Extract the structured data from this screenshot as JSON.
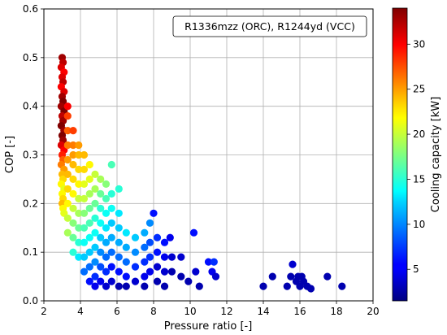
{
  "chart_data": {
    "type": "scatter",
    "title": "",
    "xlabel": "Pressure ratio [-]",
    "ylabel": "COP [-]",
    "xlim": [
      2,
      20
    ],
    "ylim": [
      0.0,
      0.6
    ],
    "xticks": [
      "2",
      "4",
      "6",
      "8",
      "10",
      "12",
      "14",
      "16",
      "18",
      "20"
    ],
    "yticks": [
      "0.0",
      "0.1",
      "0.2",
      "0.3",
      "0.4",
      "0.5",
      "0.6"
    ],
    "grid": true,
    "legend": {
      "text": "R1336mzz (ORC), R1244yd (VCC)",
      "placement": "top-right"
    },
    "colorbar": {
      "label": "Cooling capacity [kW]",
      "colormap": "jet",
      "range": [
        1.5,
        34
      ],
      "ticks": [
        "5",
        "10",
        "15",
        "20",
        "25",
        "30"
      ]
    },
    "series": [
      {
        "points": [
          [
            3.0,
            0.5,
            33
          ],
          [
            3.05,
            0.49,
            32
          ],
          [
            2.95,
            0.48,
            31
          ],
          [
            3.1,
            0.47,
            30
          ],
          [
            3.0,
            0.46,
            31
          ],
          [
            3.05,
            0.45,
            32
          ],
          [
            2.95,
            0.44,
            30
          ],
          [
            3.1,
            0.43,
            31
          ],
          [
            3.0,
            0.42,
            33
          ],
          [
            3.05,
            0.41,
            34
          ],
          [
            2.95,
            0.4,
            33
          ],
          [
            3.1,
            0.39,
            34
          ],
          [
            3.0,
            0.38,
            32
          ],
          [
            3.05,
            0.37,
            33
          ],
          [
            2.95,
            0.36,
            34
          ],
          [
            3.1,
            0.35,
            33
          ],
          [
            3.0,
            0.34,
            34
          ],
          [
            3.05,
            0.33,
            33
          ],
          [
            2.95,
            0.32,
            31
          ],
          [
            3.1,
            0.31,
            30
          ],
          [
            3.0,
            0.3,
            29
          ],
          [
            3.05,
            0.29,
            27
          ],
          [
            2.95,
            0.28,
            26
          ],
          [
            3.1,
            0.27,
            25
          ],
          [
            3.0,
            0.26,
            24
          ],
          [
            3.05,
            0.25,
            23
          ],
          [
            2.95,
            0.24,
            22
          ],
          [
            3.1,
            0.23,
            21
          ],
          [
            3.0,
            0.22,
            22
          ],
          [
            3.05,
            0.21,
            23
          ],
          [
            3.0,
            0.2,
            24
          ],
          [
            3.05,
            0.19,
            22
          ],
          [
            3.1,
            0.18,
            21
          ],
          [
            3.3,
            0.4,
            30
          ],
          [
            3.3,
            0.38,
            28
          ],
          [
            3.3,
            0.35,
            27
          ],
          [
            3.3,
            0.32,
            26
          ],
          [
            3.3,
            0.29,
            25
          ],
          [
            3.3,
            0.26,
            24
          ],
          [
            3.3,
            0.23,
            23
          ],
          [
            3.3,
            0.2,
            22
          ],
          [
            3.3,
            0.17,
            20
          ],
          [
            3.3,
            0.14,
            19
          ],
          [
            3.6,
            0.35,
            28
          ],
          [
            3.6,
            0.32,
            26
          ],
          [
            3.6,
            0.3,
            25
          ],
          [
            3.6,
            0.28,
            24
          ],
          [
            3.6,
            0.25,
            23
          ],
          [
            3.6,
            0.22,
            22
          ],
          [
            3.6,
            0.19,
            20
          ],
          [
            3.6,
            0.16,
            18
          ],
          [
            3.6,
            0.13,
            17
          ],
          [
            3.6,
            0.1,
            15
          ],
          [
            3.9,
            0.32,
            25
          ],
          [
            3.9,
            0.3,
            24
          ],
          [
            3.9,
            0.27,
            23
          ],
          [
            3.9,
            0.24,
            22
          ],
          [
            3.9,
            0.21,
            20
          ],
          [
            3.9,
            0.18,
            19
          ],
          [
            3.9,
            0.15,
            17
          ],
          [
            3.9,
            0.12,
            15
          ],
          [
            3.9,
            0.09,
            13
          ],
          [
            4.2,
            0.3,
            24
          ],
          [
            4.2,
            0.27,
            23
          ],
          [
            4.2,
            0.24,
            21
          ],
          [
            4.2,
            0.21,
            20
          ],
          [
            4.2,
            0.18,
            18
          ],
          [
            4.2,
            0.15,
            16
          ],
          [
            4.2,
            0.12,
            14
          ],
          [
            4.2,
            0.09,
            12
          ],
          [
            4.2,
            0.06,
            9
          ],
          [
            4.5,
            0.28,
            22
          ],
          [
            4.5,
            0.25,
            21
          ],
          [
            4.5,
            0.22,
            19
          ],
          [
            4.5,
            0.19,
            17
          ],
          [
            4.5,
            0.16,
            16
          ],
          [
            4.5,
            0.13,
            14
          ],
          [
            4.5,
            0.1,
            12
          ],
          [
            4.5,
            0.07,
            9
          ],
          [
            4.5,
            0.04,
            6
          ],
          [
            4.8,
            0.26,
            20
          ],
          [
            4.8,
            0.23,
            19
          ],
          [
            4.8,
            0.2,
            17
          ],
          [
            4.8,
            0.17,
            15
          ],
          [
            4.8,
            0.14,
            14
          ],
          [
            4.8,
            0.11,
            12
          ],
          [
            4.8,
            0.08,
            10
          ],
          [
            4.8,
            0.05,
            7
          ],
          [
            4.8,
            0.03,
            5
          ],
          [
            5.1,
            0.25,
            19
          ],
          [
            5.1,
            0.22,
            17
          ],
          [
            5.1,
            0.19,
            15
          ],
          [
            5.1,
            0.16,
            14
          ],
          [
            5.1,
            0.13,
            12
          ],
          [
            5.1,
            0.1,
            10
          ],
          [
            5.1,
            0.07,
            8
          ],
          [
            5.1,
            0.04,
            5
          ],
          [
            5.4,
            0.24,
            18
          ],
          [
            5.4,
            0.21,
            16
          ],
          [
            5.4,
            0.18,
            14
          ],
          [
            5.4,
            0.15,
            13
          ],
          [
            5.4,
            0.12,
            11
          ],
          [
            5.4,
            0.09,
            9
          ],
          [
            5.4,
            0.06,
            7
          ],
          [
            5.4,
            0.03,
            4
          ],
          [
            5.7,
            0.28,
            16
          ],
          [
            5.7,
            0.22,
            15
          ],
          [
            5.7,
            0.19,
            14
          ],
          [
            5.7,
            0.16,
            12
          ],
          [
            5.7,
            0.13,
            11
          ],
          [
            5.7,
            0.1,
            9
          ],
          [
            5.7,
            0.07,
            6
          ],
          [
            5.7,
            0.04,
            4
          ],
          [
            6.1,
            0.23,
            15
          ],
          [
            6.1,
            0.18,
            13
          ],
          [
            6.1,
            0.15,
            12
          ],
          [
            6.1,
            0.12,
            11
          ],
          [
            6.1,
            0.09,
            9
          ],
          [
            6.1,
            0.06,
            6
          ],
          [
            6.1,
            0.03,
            3
          ],
          [
            6.5,
            0.14,
            13
          ],
          [
            6.5,
            0.11,
            11
          ],
          [
            6.5,
            0.08,
            9
          ],
          [
            6.5,
            0.05,
            6
          ],
          [
            6.5,
            0.03,
            3
          ],
          [
            7.0,
            0.13,
            12
          ],
          [
            7.0,
            0.1,
            10
          ],
          [
            7.0,
            0.07,
            7
          ],
          [
            7.0,
            0.04,
            4
          ],
          [
            7.5,
            0.14,
            11
          ],
          [
            7.5,
            0.11,
            9
          ],
          [
            7.5,
            0.08,
            7
          ],
          [
            7.5,
            0.05,
            5
          ],
          [
            7.5,
            0.03,
            3
          ],
          [
            7.8,
            0.16,
            10
          ],
          [
            7.8,
            0.12,
            8
          ],
          [
            7.8,
            0.09,
            7
          ],
          [
            7.8,
            0.06,
            5
          ],
          [
            8.0,
            0.18,
            6
          ],
          [
            8.2,
            0.13,
            7
          ],
          [
            8.2,
            0.1,
            6
          ],
          [
            8.2,
            0.07,
            4
          ],
          [
            8.2,
            0.04,
            3
          ],
          [
            8.6,
            0.12,
            6
          ],
          [
            8.6,
            0.09,
            5
          ],
          [
            8.6,
            0.06,
            4
          ],
          [
            8.6,
            0.03,
            3
          ],
          [
            8.9,
            0.13,
            5
          ],
          [
            9.0,
            0.09,
            4
          ],
          [
            9.0,
            0.06,
            3
          ],
          [
            9.5,
            0.09,
            4
          ],
          [
            9.5,
            0.05,
            3
          ],
          [
            9.9,
            0.04,
            3
          ],
          [
            10.2,
            0.14,
            6
          ],
          [
            10.3,
            0.06,
            4
          ],
          [
            10.5,
            0.03,
            3
          ],
          [
            11.0,
            0.08,
            6
          ],
          [
            11.2,
            0.06,
            5
          ],
          [
            11.4,
            0.05,
            4
          ],
          [
            11.3,
            0.08,
            7
          ],
          [
            14.0,
            0.03,
            3
          ],
          [
            14.5,
            0.05,
            3
          ],
          [
            15.3,
            0.03,
            3
          ],
          [
            15.5,
            0.05,
            3
          ],
          [
            15.6,
            0.075,
            4
          ],
          [
            15.8,
            0.04,
            3
          ],
          [
            15.9,
            0.05,
            3
          ],
          [
            16.0,
            0.03,
            3
          ],
          [
            16.1,
            0.05,
            3
          ],
          [
            16.2,
            0.04,
            3
          ],
          [
            16.4,
            0.03,
            3
          ],
          [
            16.6,
            0.025,
            3
          ],
          [
            17.5,
            0.05,
            3
          ],
          [
            18.3,
            0.03,
            3
          ]
        ]
      }
    ]
  }
}
